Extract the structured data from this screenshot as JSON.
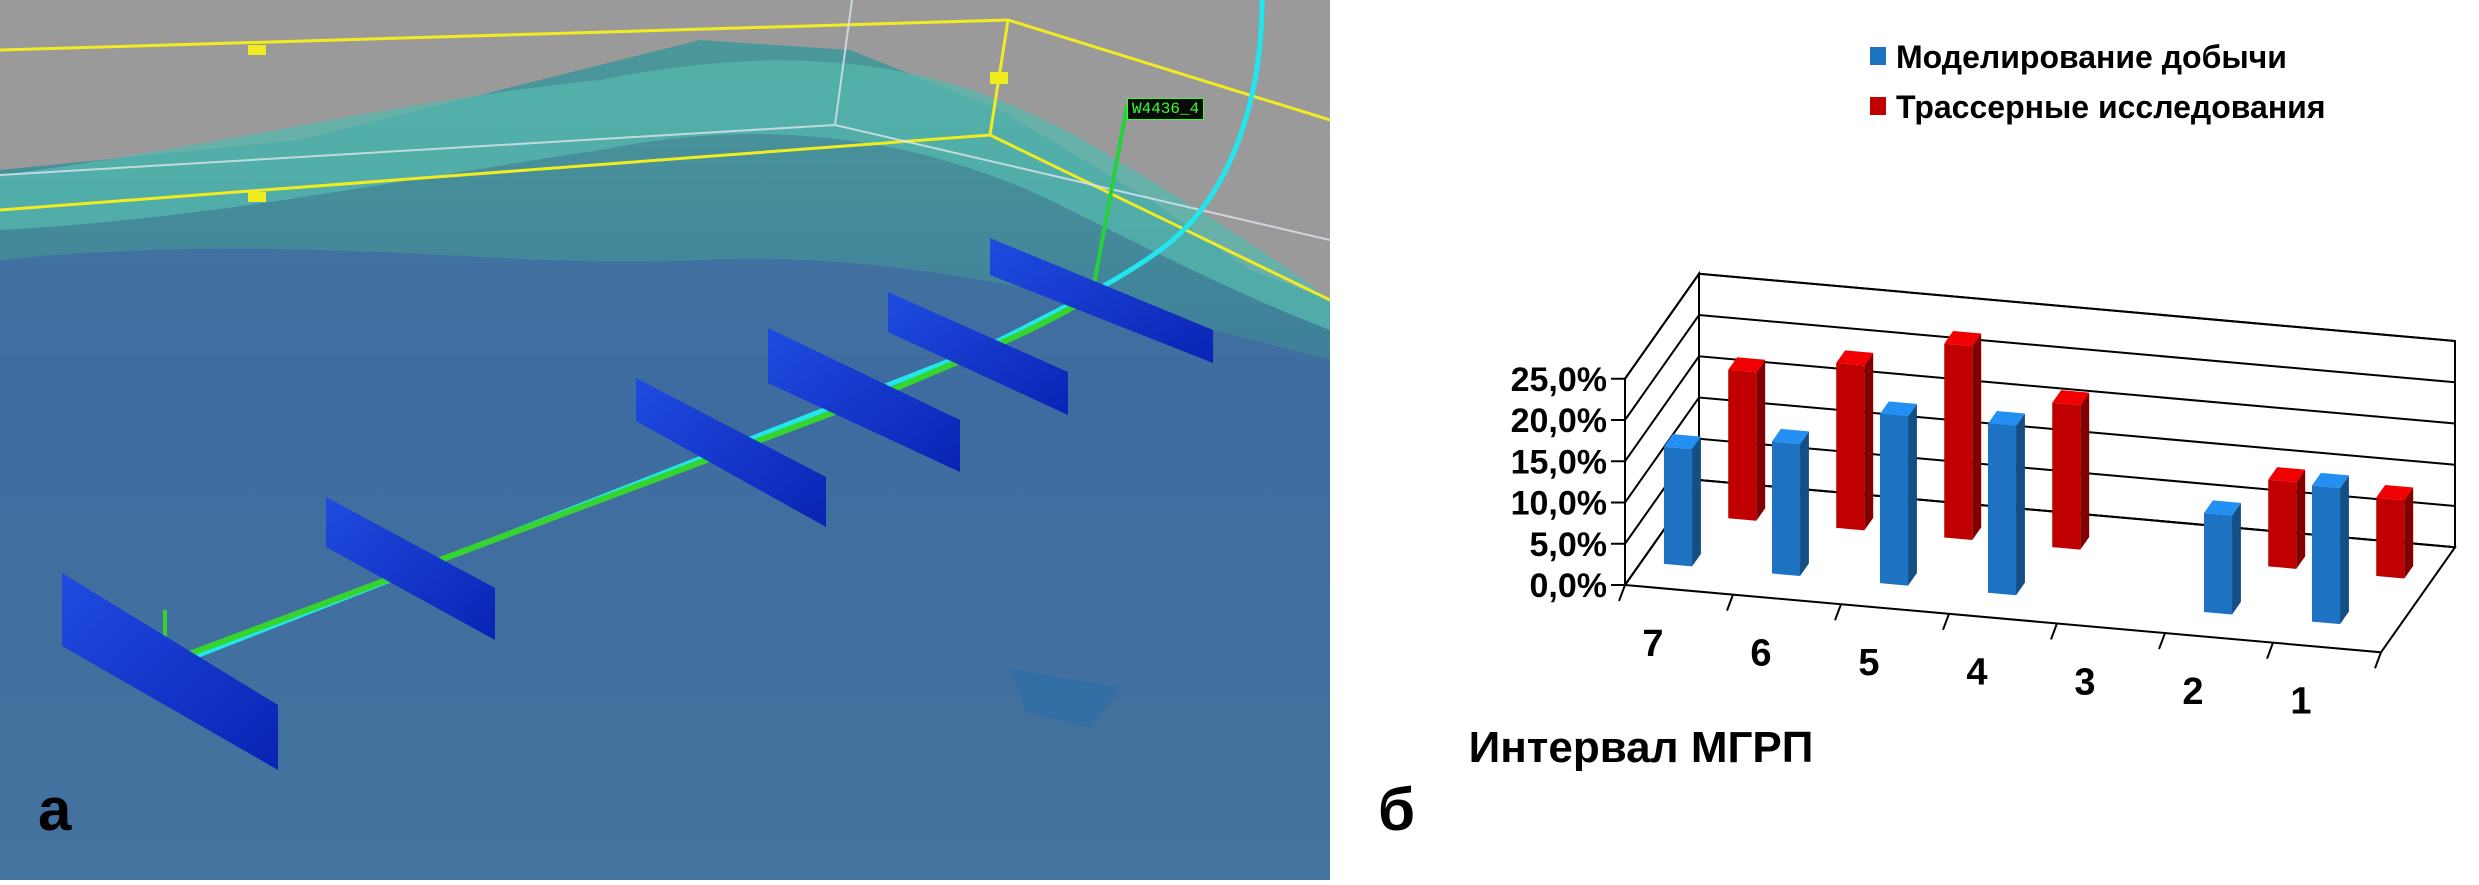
{
  "panels": {
    "left_letter": "а",
    "right_letter": "б",
    "well_label": "W4436_4"
  },
  "chart_data": {
    "type": "bar",
    "title": "",
    "xlabel": "Интервал МГРП",
    "ylabel": "",
    "categories": [
      "7",
      "6",
      "5",
      "4",
      "3",
      "2",
      "1"
    ],
    "ylim": [
      0,
      25
    ],
    "yticks": [
      "0,0%",
      "5,0%",
      "10,0%",
      "15,0%",
      "20,0%",
      "25,0%"
    ],
    "grid": true,
    "legend_position": "top-right",
    "series": [
      {
        "name": "Моделирование добычи",
        "color": "#1d72c2",
        "values": [
          14.2,
          16.0,
          20.5,
          20.5,
          0,
          12.0,
          16.5
        ]
      },
      {
        "name": "Трассерные исследования",
        "color": "#c00000",
        "values": [
          18.0,
          20.0,
          23.5,
          17.5,
          0,
          10.5,
          9.5
        ]
      }
    ]
  }
}
